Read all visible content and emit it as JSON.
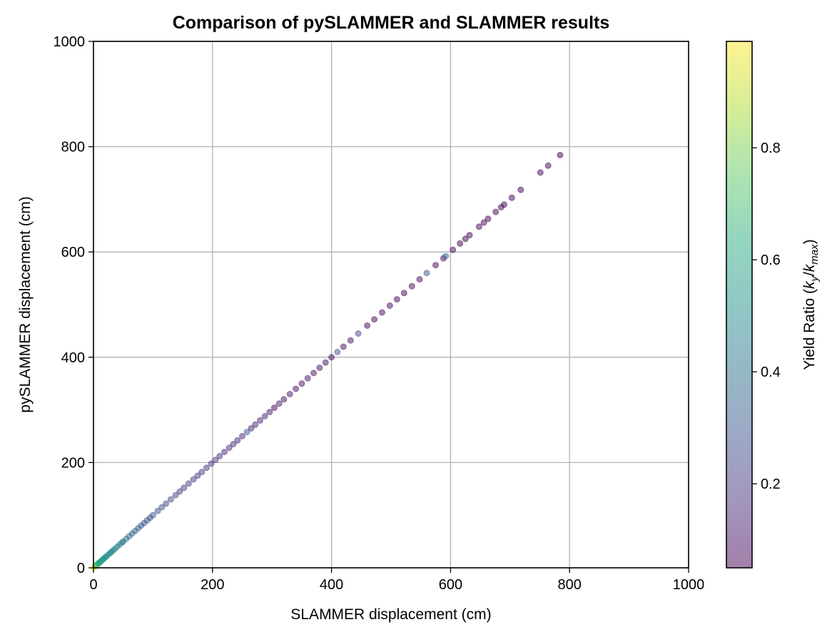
{
  "chart_data": {
    "type": "scatter",
    "title": "Comparison of pySLAMMER and SLAMMER results",
    "xlabel": "SLAMMER displacement (cm)",
    "ylabel": "pySLAMMER displacement (cm)",
    "xlim": [
      0,
      1000
    ],
    "ylim": [
      0,
      1000
    ],
    "xticks": [
      0,
      200,
      400,
      600,
      800,
      1000
    ],
    "yticks": [
      0,
      200,
      400,
      600,
      800,
      1000
    ],
    "grid": true,
    "marker_alpha": 0.5,
    "colormap": "viridis",
    "colorbar": {
      "label": "Yield Ratio (k_y/k_max)",
      "label_prefix": "Yield Ratio (",
      "label_k1": "k",
      "label_sub1": "y",
      "label_slash": "/",
      "label_k2": "k",
      "label_sub2": "max",
      "label_suffix": ")",
      "range": [
        0.05,
        0.99
      ],
      "ticks": [
        0.2,
        0.4,
        0.6,
        0.8
      ],
      "tick_labels": [
        "0.2",
        "0.4",
        "0.6",
        "0.8"
      ]
    },
    "series": [
      {
        "x_over_y": "1:1",
        "points": [
          [
            1,
            0.99
          ],
          [
            2,
            0.95
          ],
          [
            3,
            0.9
          ],
          [
            4,
            0.85
          ],
          [
            5,
            0.8
          ],
          [
            6,
            0.75
          ],
          [
            7,
            0.7
          ],
          [
            8,
            0.66
          ],
          [
            9,
            0.62
          ],
          [
            10,
            0.6
          ],
          [
            12,
            0.58
          ],
          [
            14,
            0.56
          ],
          [
            16,
            0.55
          ],
          [
            18,
            0.54
          ],
          [
            20,
            0.53
          ],
          [
            22,
            0.52
          ],
          [
            25,
            0.5
          ],
          [
            28,
            0.5
          ],
          [
            30,
            0.48
          ],
          [
            33,
            0.47
          ],
          [
            36,
            0.46
          ],
          [
            40,
            0.45
          ],
          [
            44,
            0.44
          ],
          [
            48,
            0.43
          ],
          [
            50,
            0.42
          ],
          [
            55,
            0.4
          ],
          [
            60,
            0.38
          ],
          [
            65,
            0.36
          ],
          [
            70,
            0.35
          ],
          [
            75,
            0.34
          ],
          [
            80,
            0.32
          ],
          [
            85,
            0.31
          ],
          [
            90,
            0.3
          ],
          [
            95,
            0.29
          ],
          [
            100,
            0.28
          ],
          [
            108,
            0.27
          ],
          [
            115,
            0.26
          ],
          [
            122,
            0.25
          ],
          [
            130,
            0.24
          ],
          [
            138,
            0.23
          ],
          [
            145,
            0.22
          ],
          [
            152,
            0.22
          ],
          [
            160,
            0.21
          ],
          [
            168,
            0.2
          ],
          [
            175,
            0.2
          ],
          [
            182,
            0.19
          ],
          [
            190,
            0.18
          ],
          [
            198,
            0.18
          ],
          [
            205,
            0.17
          ],
          [
            212,
            0.17
          ],
          [
            220,
            0.16
          ],
          [
            228,
            0.16
          ],
          [
            235,
            0.15
          ],
          [
            242,
            0.15
          ],
          [
            250,
            0.15
          ],
          [
            258,
            0.3
          ],
          [
            265,
            0.14
          ],
          [
            272,
            0.14
          ],
          [
            280,
            0.13
          ],
          [
            288,
            0.13
          ],
          [
            296,
            0.12
          ],
          [
            304,
            0.06
          ],
          [
            312,
            0.12
          ],
          [
            320,
            0.11
          ],
          [
            330,
            0.11
          ],
          [
            340,
            0.1
          ],
          [
            350,
            0.1
          ],
          [
            360,
            0.1
          ],
          [
            370,
            0.09
          ],
          [
            380,
            0.09
          ],
          [
            390,
            0.09
          ],
          [
            400,
            0.08
          ],
          [
            410,
            0.3
          ],
          [
            420,
            0.08
          ],
          [
            432,
            0.08
          ],
          [
            445,
            0.25
          ],
          [
            460,
            0.07
          ],
          [
            472,
            0.07
          ],
          [
            485,
            0.07
          ],
          [
            498,
            0.06
          ],
          [
            510,
            0.06
          ],
          [
            522,
            0.06
          ],
          [
            535,
            0.06
          ],
          [
            548,
            0.06
          ],
          [
            560,
            0.3
          ],
          [
            575,
            0.06
          ],
          [
            588,
            0.06
          ],
          [
            592,
            0.35
          ],
          [
            604,
            0.05
          ],
          [
            616,
            0.05
          ],
          [
            625,
            0.05
          ],
          [
            632,
            0.05
          ],
          [
            648,
            0.05
          ],
          [
            656,
            0.05
          ],
          [
            663,
            0.05
          ],
          [
            676,
            0.05
          ],
          [
            685,
            0.05
          ],
          [
            690,
            0.05
          ],
          [
            703,
            0.05
          ],
          [
            718,
            0.05
          ],
          [
            751,
            0.05
          ],
          [
            764,
            0.05
          ],
          [
            784,
            0.05
          ]
        ]
      }
    ]
  }
}
